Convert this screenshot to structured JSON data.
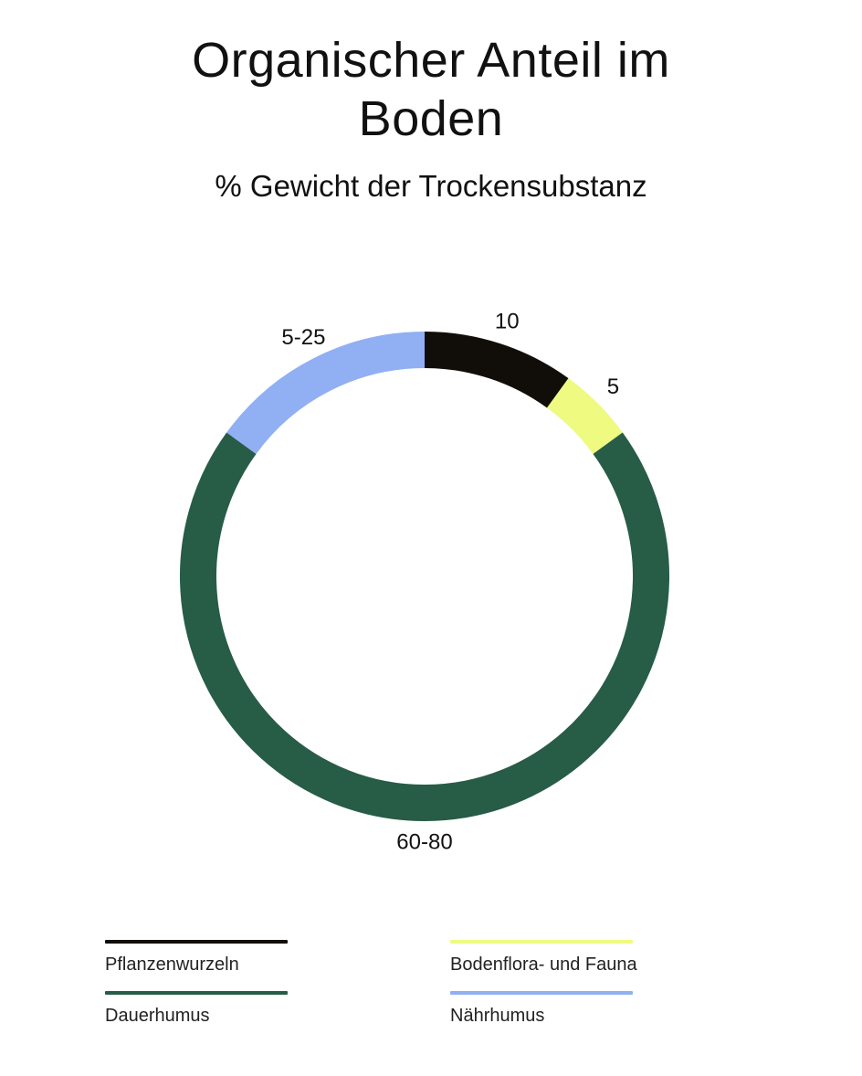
{
  "title_lines": [
    "Organischer Anteil im",
    "Boden"
  ],
  "subtitle": "% Gewicht der Trockensubstanz",
  "chart_data": {
    "type": "pie",
    "style": "donut",
    "title": "Organischer Anteil im Boden",
    "subtitle": "% Gewicht der Trockensubstanz",
    "start_direction": "top",
    "direction": "clockwise",
    "slices": [
      {
        "name": "Pflanzenwurzeln",
        "label": "10",
        "value": 10,
        "color": "#110e0a"
      },
      {
        "name": "Bodenflora- und Fauna",
        "label": "5",
        "value": 5,
        "color": "#eefa80"
      },
      {
        "name": "Dauerhumus",
        "label": "60-80",
        "value": 70,
        "color": "#275c47"
      },
      {
        "name": "Nährhumus",
        "label": "5-25",
        "value": 15,
        "color": "#91aff3"
      }
    ],
    "legend_position": "bottom"
  },
  "legend": [
    {
      "label": "Pflanzenwurzeln",
      "color": "#110e0a"
    },
    {
      "label": "Bodenflora- und Fauna",
      "color": "#eefa80"
    },
    {
      "label": "Dauerhumus",
      "color": "#275c47"
    },
    {
      "label": "Nährhumus",
      "color": "#91aff3"
    }
  ]
}
